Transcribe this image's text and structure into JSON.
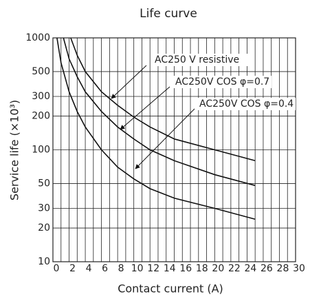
{
  "chart_data": {
    "type": "line",
    "title": "Life curve",
    "xlabel": "Contact current (A)",
    "ylabel": "Service life (×10³)",
    "xlim": [
      0,
      30
    ],
    "xticks": [
      0,
      2,
      4,
      6,
      8,
      10,
      12,
      14,
      16,
      18,
      20,
      22,
      24,
      26,
      28,
      30
    ],
    "ylim": [
      10,
      1000
    ],
    "yticks": [
      10,
      20,
      30,
      50,
      100,
      200,
      300,
      500,
      1000
    ],
    "log_y": true,
    "grid": true,
    "series": [
      {
        "name": "AC250 V  resistive",
        "color": "#111111",
        "x": [
          2.2,
          3,
          4,
          6,
          8,
          10,
          12,
          15,
          20,
          25
        ],
        "values": [
          1000,
          700,
          500,
          330,
          250,
          196,
          160,
          125,
          100,
          80
        ]
      },
      {
        "name": "AC250V COS  φ=0.7",
        "color": "#111111",
        "x": [
          1.3,
          2,
          3,
          4,
          6,
          8,
          10,
          12,
          15,
          20,
          25
        ],
        "values": [
          1000,
          650,
          450,
          330,
          220,
          160,
          125,
          100,
          80,
          60,
          48
        ]
      },
      {
        "name": "AC250V COS  φ=0.4",
        "color": "#111111",
        "x": [
          0.5,
          1,
          2,
          3,
          4,
          6,
          8,
          10,
          12,
          15,
          20,
          25
        ],
        "values": [
          1000,
          600,
          330,
          220,
          160,
          100,
          70,
          55,
          45,
          37,
          30,
          24
        ]
      }
    ]
  }
}
